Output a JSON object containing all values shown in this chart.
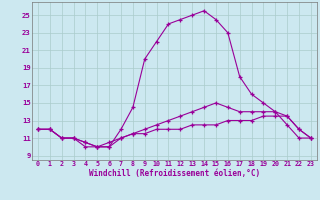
{
  "xlabel": "Windchill (Refroidissement éolien,°C)",
  "bg_color": "#cce8f0",
  "line_color": "#990099",
  "grid_color": "#aacccc",
  "xlim": [
    -0.5,
    23.5
  ],
  "ylim": [
    8.5,
    26.5
  ],
  "yticks": [
    9,
    11,
    13,
    15,
    17,
    19,
    21,
    23,
    25
  ],
  "xticks": [
    0,
    1,
    2,
    3,
    4,
    5,
    6,
    7,
    8,
    9,
    10,
    11,
    12,
    13,
    14,
    15,
    16,
    17,
    18,
    19,
    20,
    21,
    22,
    23
  ],
  "line1_x": [
    0,
    1,
    2,
    3,
    4,
    5,
    6,
    7,
    8,
    9,
    10,
    11,
    12,
    13,
    14,
    15,
    16,
    17,
    18,
    19,
    20,
    21,
    22,
    23
  ],
  "line1_y": [
    12,
    12,
    11,
    11,
    10.5,
    10,
    10,
    12,
    14.5,
    20,
    22,
    24,
    24.5,
    25,
    25.5,
    24.5,
    23,
    18,
    16,
    15,
    14,
    12.5,
    11,
    11
  ],
  "line2_x": [
    0,
    1,
    2,
    3,
    4,
    5,
    6,
    7,
    8,
    9,
    10,
    11,
    12,
    13,
    14,
    15,
    16,
    17,
    18,
    19,
    20,
    21,
    22,
    23
  ],
  "line2_y": [
    12,
    12,
    11,
    11,
    10.5,
    10,
    10.5,
    11,
    11.5,
    12,
    12.5,
    13,
    13.5,
    14,
    14.5,
    15,
    14.5,
    14,
    14,
    14,
    14,
    13.5,
    12,
    11
  ],
  "line3_x": [
    0,
    1,
    2,
    3,
    4,
    5,
    6,
    7,
    8,
    9,
    10,
    11,
    12,
    13,
    14,
    15,
    16,
    17,
    18,
    19,
    20,
    21,
    22,
    23
  ],
  "line3_y": [
    12,
    12,
    11,
    11,
    10,
    10,
    10,
    11,
    11.5,
    11.5,
    12,
    12,
    12,
    12.5,
    12.5,
    12.5,
    13,
    13,
    13,
    13.5,
    13.5,
    13.5,
    12,
    11
  ]
}
